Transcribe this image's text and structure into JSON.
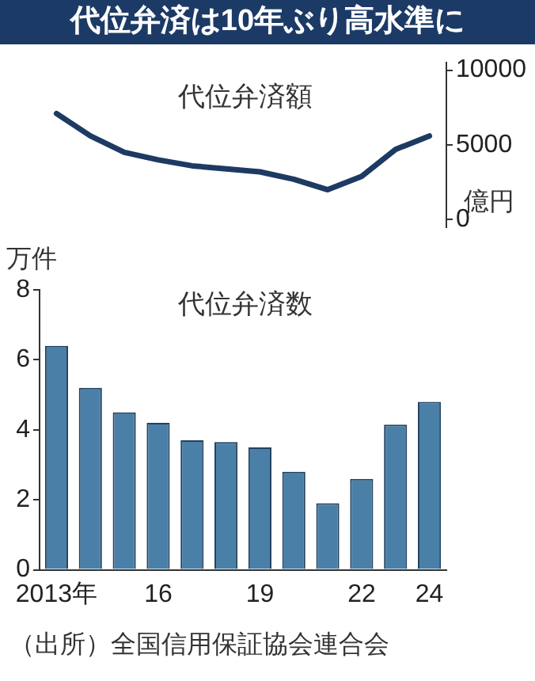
{
  "chart_data": [
    {
      "type": "other",
      "title": "代位弁済は10年ぶり高水準に"
    },
    {
      "type": "line",
      "title": "代位弁済額",
      "ylabel": "億円",
      "categories": [
        null,
        null,
        null,
        null,
        null,
        null,
        null,
        null,
        null,
        null,
        null,
        null
      ],
      "tick_labels": "y",
      "ylim": [
        -500,
        10500
      ],
      "yticks": [
        0,
        5000,
        10000
      ],
      "grid": false,
      "series": [
        {
          "color": "#1d3a63",
          "values": [
            7100,
            5600,
            4500,
            4000,
            3600,
            3400,
            3200,
            2700,
            2000,
            2900,
            4700,
            5600
          ]
        }
      ]
    },
    {
      "type": "bar",
      "title": "代位弁済数",
      "ylabel": "万件",
      "categories": [
        "2013年",
        null,
        null,
        "16",
        null,
        null,
        "19",
        null,
        null,
        "22",
        null,
        "24"
      ],
      "ylim": [
        0,
        8
      ],
      "yticks": [
        0,
        2,
        4,
        6,
        8
      ],
      "grid": false,
      "series": [
        {
          "color": "#4a80a8",
          "values": [
            6.4,
            5.2,
            4.5,
            4.2,
            3.7,
            3.65,
            3.5,
            2.8,
            1.9,
            2.6,
            4.15,
            4.8
          ]
        }
      ],
      "annotations": [
        "（出所）全国信用保証協会連合会"
      ]
    }
  ]
}
